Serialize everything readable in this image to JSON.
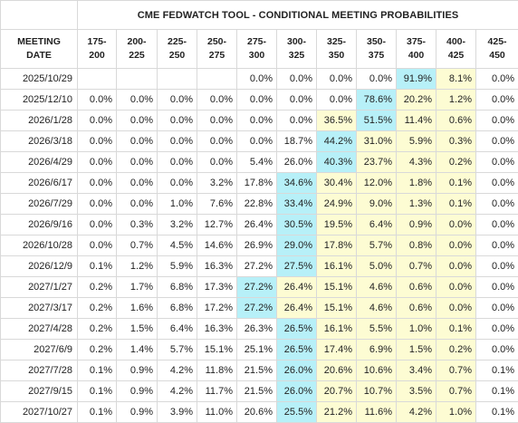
{
  "table": {
    "title": "CME FEDWATCH TOOL - CONDITIONAL MEETING PROBABILITIES",
    "date_header_line1": "MEETING",
    "date_header_line2": "DATE",
    "ranges": [
      {
        "low": "175-",
        "high": "200"
      },
      {
        "low": "200-",
        "high": "225"
      },
      {
        "low": "225-",
        "high": "250"
      },
      {
        "low": "250-",
        "high": "275"
      },
      {
        "low": "275-",
        "high": "300"
      },
      {
        "low": "300-",
        "high": "325"
      },
      {
        "low": "325-",
        "high": "350"
      },
      {
        "low": "350-",
        "high": "375"
      },
      {
        "low": "375-",
        "high": "400"
      },
      {
        "low": "400-",
        "high": "425"
      },
      {
        "low": "425-",
        "high": "450"
      }
    ],
    "highlight_colors": {
      "yellow": "#fdfcd3",
      "cyan": "#b7f0f8"
    },
    "rows": [
      {
        "date": "2025/10/29",
        "cells": [
          "",
          "",
          "",
          "",
          "0.0%",
          "0.0%",
          "0.0%",
          "0.0%",
          "91.9%",
          "8.1%",
          "0.0%"
        ],
        "yellow": [
          9
        ],
        "cyan": [
          8
        ]
      },
      {
        "date": "2025/12/10",
        "cells": [
          "0.0%",
          "0.0%",
          "0.0%",
          "0.0%",
          "0.0%",
          "0.0%",
          "0.0%",
          "78.6%",
          "20.2%",
          "1.2%",
          "0.0%"
        ],
        "yellow": [
          8,
          9
        ],
        "cyan": [
          7
        ]
      },
      {
        "date": "2026/1/28",
        "cells": [
          "0.0%",
          "0.0%",
          "0.0%",
          "0.0%",
          "0.0%",
          "0.0%",
          "36.5%",
          "51.5%",
          "11.4%",
          "0.6%",
          "0.0%"
        ],
        "yellow": [
          6,
          8,
          9
        ],
        "cyan": [
          7
        ]
      },
      {
        "date": "2026/3/18",
        "cells": [
          "0.0%",
          "0.0%",
          "0.0%",
          "0.0%",
          "0.0%",
          "18.7%",
          "44.2%",
          "31.0%",
          "5.9%",
          "0.3%",
          "0.0%"
        ],
        "yellow": [
          7,
          8,
          9
        ],
        "cyan": [
          6
        ]
      },
      {
        "date": "2026/4/29",
        "cells": [
          "0.0%",
          "0.0%",
          "0.0%",
          "0.0%",
          "5.4%",
          "26.0%",
          "40.3%",
          "23.7%",
          "4.3%",
          "0.2%",
          "0.0%"
        ],
        "yellow": [
          7,
          8,
          9
        ],
        "cyan": [
          6
        ]
      },
      {
        "date": "2026/6/17",
        "cells": [
          "0.0%",
          "0.0%",
          "0.0%",
          "3.2%",
          "17.8%",
          "34.6%",
          "30.4%",
          "12.0%",
          "1.8%",
          "0.1%",
          "0.0%"
        ],
        "yellow": [
          6,
          7,
          8,
          9
        ],
        "cyan": [
          5
        ]
      },
      {
        "date": "2026/7/29",
        "cells": [
          "0.0%",
          "0.0%",
          "1.0%",
          "7.6%",
          "22.8%",
          "33.4%",
          "24.9%",
          "9.0%",
          "1.3%",
          "0.1%",
          "0.0%"
        ],
        "yellow": [
          6,
          7,
          8,
          9
        ],
        "cyan": [
          5
        ]
      },
      {
        "date": "2026/9/16",
        "cells": [
          "0.0%",
          "0.3%",
          "3.2%",
          "12.7%",
          "26.4%",
          "30.5%",
          "19.5%",
          "6.4%",
          "0.9%",
          "0.0%",
          "0.0%"
        ],
        "yellow": [
          6,
          7,
          8,
          9
        ],
        "cyan": [
          5
        ]
      },
      {
        "date": "2026/10/28",
        "cells": [
          "0.0%",
          "0.7%",
          "4.5%",
          "14.6%",
          "26.9%",
          "29.0%",
          "17.8%",
          "5.7%",
          "0.8%",
          "0.0%",
          "0.0%"
        ],
        "yellow": [
          6,
          7,
          8,
          9
        ],
        "cyan": [
          5
        ]
      },
      {
        "date": "2026/12/9",
        "cells": [
          "0.1%",
          "1.2%",
          "5.9%",
          "16.3%",
          "27.2%",
          "27.5%",
          "16.1%",
          "5.0%",
          "0.7%",
          "0.0%",
          "0.0%"
        ],
        "yellow": [
          6,
          7,
          8,
          9
        ],
        "cyan": [
          5
        ]
      },
      {
        "date": "2027/1/27",
        "cells": [
          "0.2%",
          "1.7%",
          "6.8%",
          "17.3%",
          "27.2%",
          "26.4%",
          "15.1%",
          "4.6%",
          "0.6%",
          "0.0%",
          "0.0%"
        ],
        "yellow": [
          5,
          6,
          7,
          8,
          9
        ],
        "cyan": [
          4
        ]
      },
      {
        "date": "2027/3/17",
        "cells": [
          "0.2%",
          "1.6%",
          "6.8%",
          "17.2%",
          "27.2%",
          "26.4%",
          "15.1%",
          "4.6%",
          "0.6%",
          "0.0%",
          "0.0%"
        ],
        "yellow": [
          5,
          6,
          7,
          8,
          9
        ],
        "cyan": [
          4
        ]
      },
      {
        "date": "2027/4/28",
        "cells": [
          "0.2%",
          "1.5%",
          "6.4%",
          "16.3%",
          "26.3%",
          "26.5%",
          "16.1%",
          "5.5%",
          "1.0%",
          "0.1%",
          "0.0%"
        ],
        "yellow": [
          6,
          7,
          8,
          9
        ],
        "cyan": [
          5
        ]
      },
      {
        "date": "2027/6/9",
        "cells": [
          "0.2%",
          "1.4%",
          "5.7%",
          "15.1%",
          "25.1%",
          "26.5%",
          "17.4%",
          "6.9%",
          "1.5%",
          "0.2%",
          "0.0%"
        ],
        "yellow": [
          6,
          7,
          8,
          9
        ],
        "cyan": [
          5
        ]
      },
      {
        "date": "2027/7/28",
        "cells": [
          "0.1%",
          "0.9%",
          "4.2%",
          "11.8%",
          "21.5%",
          "26.0%",
          "20.6%",
          "10.6%",
          "3.4%",
          "0.7%",
          "0.1%"
        ],
        "yellow": [
          6,
          7,
          8,
          9
        ],
        "cyan": [
          5
        ]
      },
      {
        "date": "2027/9/15",
        "cells": [
          "0.1%",
          "0.9%",
          "4.2%",
          "11.7%",
          "21.5%",
          "26.0%",
          "20.7%",
          "10.7%",
          "3.5%",
          "0.7%",
          "0.1%"
        ],
        "yellow": [
          6,
          7,
          8,
          9
        ],
        "cyan": [
          5
        ]
      },
      {
        "date": "2027/10/27",
        "cells": [
          "0.1%",
          "0.9%",
          "3.9%",
          "11.0%",
          "20.6%",
          "25.5%",
          "21.2%",
          "11.6%",
          "4.2%",
          "1.0%",
          "0.1%"
        ],
        "yellow": [
          6,
          7,
          8,
          9
        ],
        "cyan": [
          5
        ]
      }
    ]
  }
}
